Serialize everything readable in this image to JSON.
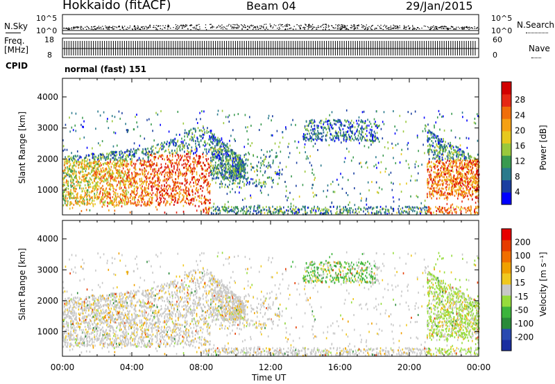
{
  "header": {
    "title": "Hokkaido (fitACF)",
    "beam": "Beam 04",
    "date": "29/Jan/2015"
  },
  "sky_panel": {
    "left_label": "N.Sky",
    "left_ticks": [
      "10^5",
      "10^0"
    ],
    "right_label": "N.Search",
    "right_ticks": [
      "10^5",
      "10^0"
    ]
  },
  "freq_panel": {
    "left_label_line1": "Freq.",
    "left_label_line2": "[MHz]",
    "left_ticks": [
      "18",
      "8"
    ],
    "right_label": "Nave",
    "right_ticks": [
      "60",
      "0"
    ]
  },
  "cpid": {
    "label": "CPID",
    "value": "normal (fast) 151"
  },
  "chart_data": [
    {
      "type": "heatmap",
      "panel": "power",
      "ylabel": "Slant Range [km]",
      "ylim": [
        200,
        4600
      ],
      "yticks": [
        "1000",
        "2000",
        "3000",
        "4000"
      ],
      "xlabel": "Time UT",
      "xticks": [
        "00:00",
        "04:00",
        "08:00",
        "12:00",
        "16:00",
        "20:00",
        "00:00"
      ],
      "xlim_hours": [
        0,
        24
      ],
      "colorbar": {
        "label": "Power [dB]",
        "ticks": [
          "4",
          "8",
          "12",
          "16",
          "20",
          "24",
          "28"
        ],
        "colors": [
          "#0000ff",
          "#1a3fa0",
          "#2a7a8c",
          "#3a9a50",
          "#9ac83c",
          "#e6c81e",
          "#f5a014",
          "#f06e0a",
          "#e62814",
          "#d20000"
        ]
      }
    },
    {
      "type": "heatmap",
      "panel": "velocity",
      "ylabel": "Slant Range [km]",
      "ylim": [
        200,
        4600
      ],
      "yticks": [
        "1000",
        "2000",
        "3000",
        "4000"
      ],
      "xlabel": "Time UT",
      "xticks": [
        "00:00",
        "04:00",
        "08:00",
        "12:00",
        "16:00",
        "20:00",
        "00:00"
      ],
      "xlim_hours": [
        0,
        24
      ],
      "colorbar": {
        "label": "Velocity [m s⁻¹]",
        "ticks": [
          "200",
          "100",
          "50",
          "15",
          "-15",
          "-50",
          "-100",
          "-200"
        ],
        "colors": [
          "#1a2ea0",
          "#2a4ab0",
          "#2a8a3a",
          "#3cb43c",
          "#96dc3c",
          "#c8c8c8",
          "#f0c81e",
          "#f0a000",
          "#f06e00",
          "#e63c00",
          "#e60000"
        ]
      }
    }
  ],
  "xaxis": {
    "label": "Time UT",
    "ticks": [
      "00:00",
      "04:00",
      "08:00",
      "12:00",
      "16:00",
      "20:00",
      "00:00"
    ]
  }
}
